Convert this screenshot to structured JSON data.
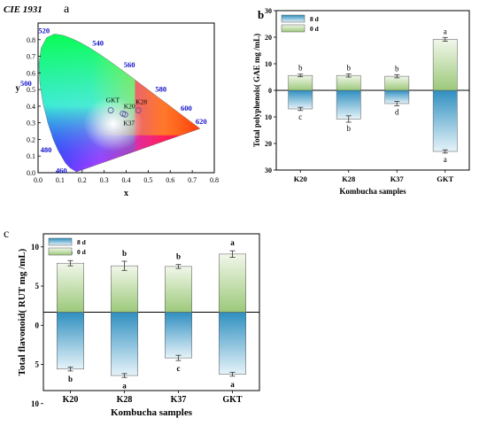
{
  "colors": {
    "blue_dark": "#2f8fc0",
    "blue_light": "#e6f3f9",
    "green_dark": "#9cc97a",
    "green_light": "#f1f7ea",
    "cie_label": "#1010c8",
    "error": "#333333"
  },
  "panels": {
    "a": {
      "label": "a",
      "title": "CIE 1931"
    },
    "b": {
      "label": "b"
    },
    "c": {
      "label": "c"
    }
  },
  "chart_data": [
    {
      "type": "scatter",
      "panel": "a",
      "title": "CIE 1931",
      "xlabel": "x",
      "ylabel": "y",
      "xlim": [
        0.0,
        0.8
      ],
      "ylim": [
        0.0,
        0.9
      ],
      "xticks": [
        "0.0",
        "0.1",
        "0.2",
        "0.3",
        "0.4",
        "0.5",
        "0.6",
        "0.7",
        "0.8"
      ],
      "yticks": [
        "0.0",
        "0.1",
        "0.2",
        "0.3",
        "0.4",
        "0.5",
        "0.6",
        "0.7",
        "0.8"
      ],
      "wavelength_labels": [
        {
          "text": "460",
          "x": 0.144,
          "y": 0.03
        },
        {
          "text": "480",
          "x": 0.091,
          "y": 0.133
        },
        {
          "text": "500",
          "x": 0.008,
          "y": 0.538
        },
        {
          "text": "520",
          "x": 0.074,
          "y": 0.834
        },
        {
          "text": "540",
          "x": 0.23,
          "y": 0.754
        },
        {
          "text": "560",
          "x": 0.373,
          "y": 0.624
        },
        {
          "text": "580",
          "x": 0.512,
          "y": 0.487
        },
        {
          "text": "600",
          "x": 0.627,
          "y": 0.372
        },
        {
          "text": "620",
          "x": 0.691,
          "y": 0.308
        }
      ],
      "points": [
        {
          "name": "GKT",
          "x": 0.33,
          "y": 0.375
        },
        {
          "name": "K20",
          "x": 0.385,
          "y": 0.355
        },
        {
          "name": "K37",
          "x": 0.395,
          "y": 0.35
        },
        {
          "name": "K28",
          "x": 0.455,
          "y": 0.375
        }
      ]
    },
    {
      "type": "bar",
      "panel": "b",
      "ylabel": "Total polyphenols( GAE mg /mL)",
      "xlabel": "Kombucha samples",
      "categories": [
        "K20",
        "K28",
        "K37",
        "GKT"
      ],
      "ylim": [
        -30,
        30
      ],
      "yticks": [
        "30",
        "20",
        "10",
        "0",
        "10",
        "20",
        "30"
      ],
      "series": [
        {
          "name": "8 d",
          "values": [
            -7.0,
            -10.8,
            -5.0,
            -23.0
          ],
          "errors": [
            0.6,
            1.2,
            0.8,
            0.6
          ],
          "letters": [
            "c",
            "b",
            "d",
            "a"
          ]
        },
        {
          "name": "0 d",
          "values": [
            5.6,
            5.6,
            5.3,
            19.2
          ],
          "errors": [
            0.5,
            0.6,
            0.6,
            0.7
          ],
          "letters": [
            "b",
            "b",
            "b",
            "a"
          ]
        }
      ]
    },
    {
      "type": "bar",
      "panel": "c",
      "ylabel": "Total flavonoid( RUT mg /mL)",
      "xlabel": "Kombucha samples",
      "categories": [
        "K20",
        "K28",
        "K37",
        "GKT"
      ],
      "ylim": [
        -12,
        12
      ],
      "yticks": [
        "10",
        "5",
        "0",
        "5",
        "10"
      ],
      "series": [
        {
          "name": "8 d",
          "values": [
            -8.7,
            -9.7,
            -7.0,
            -9.5
          ],
          "errors": [
            0.3,
            0.3,
            0.4,
            0.3
          ],
          "letters": [
            "b",
            "a",
            "c",
            "a"
          ]
        },
        {
          "name": "0 d",
          "values": [
            7.5,
            7.1,
            7.0,
            8.9
          ],
          "errors": [
            0.4,
            0.7,
            0.3,
            0.5
          ],
          "letters": [
            "b",
            "b",
            "b",
            "a"
          ]
        }
      ]
    }
  ]
}
